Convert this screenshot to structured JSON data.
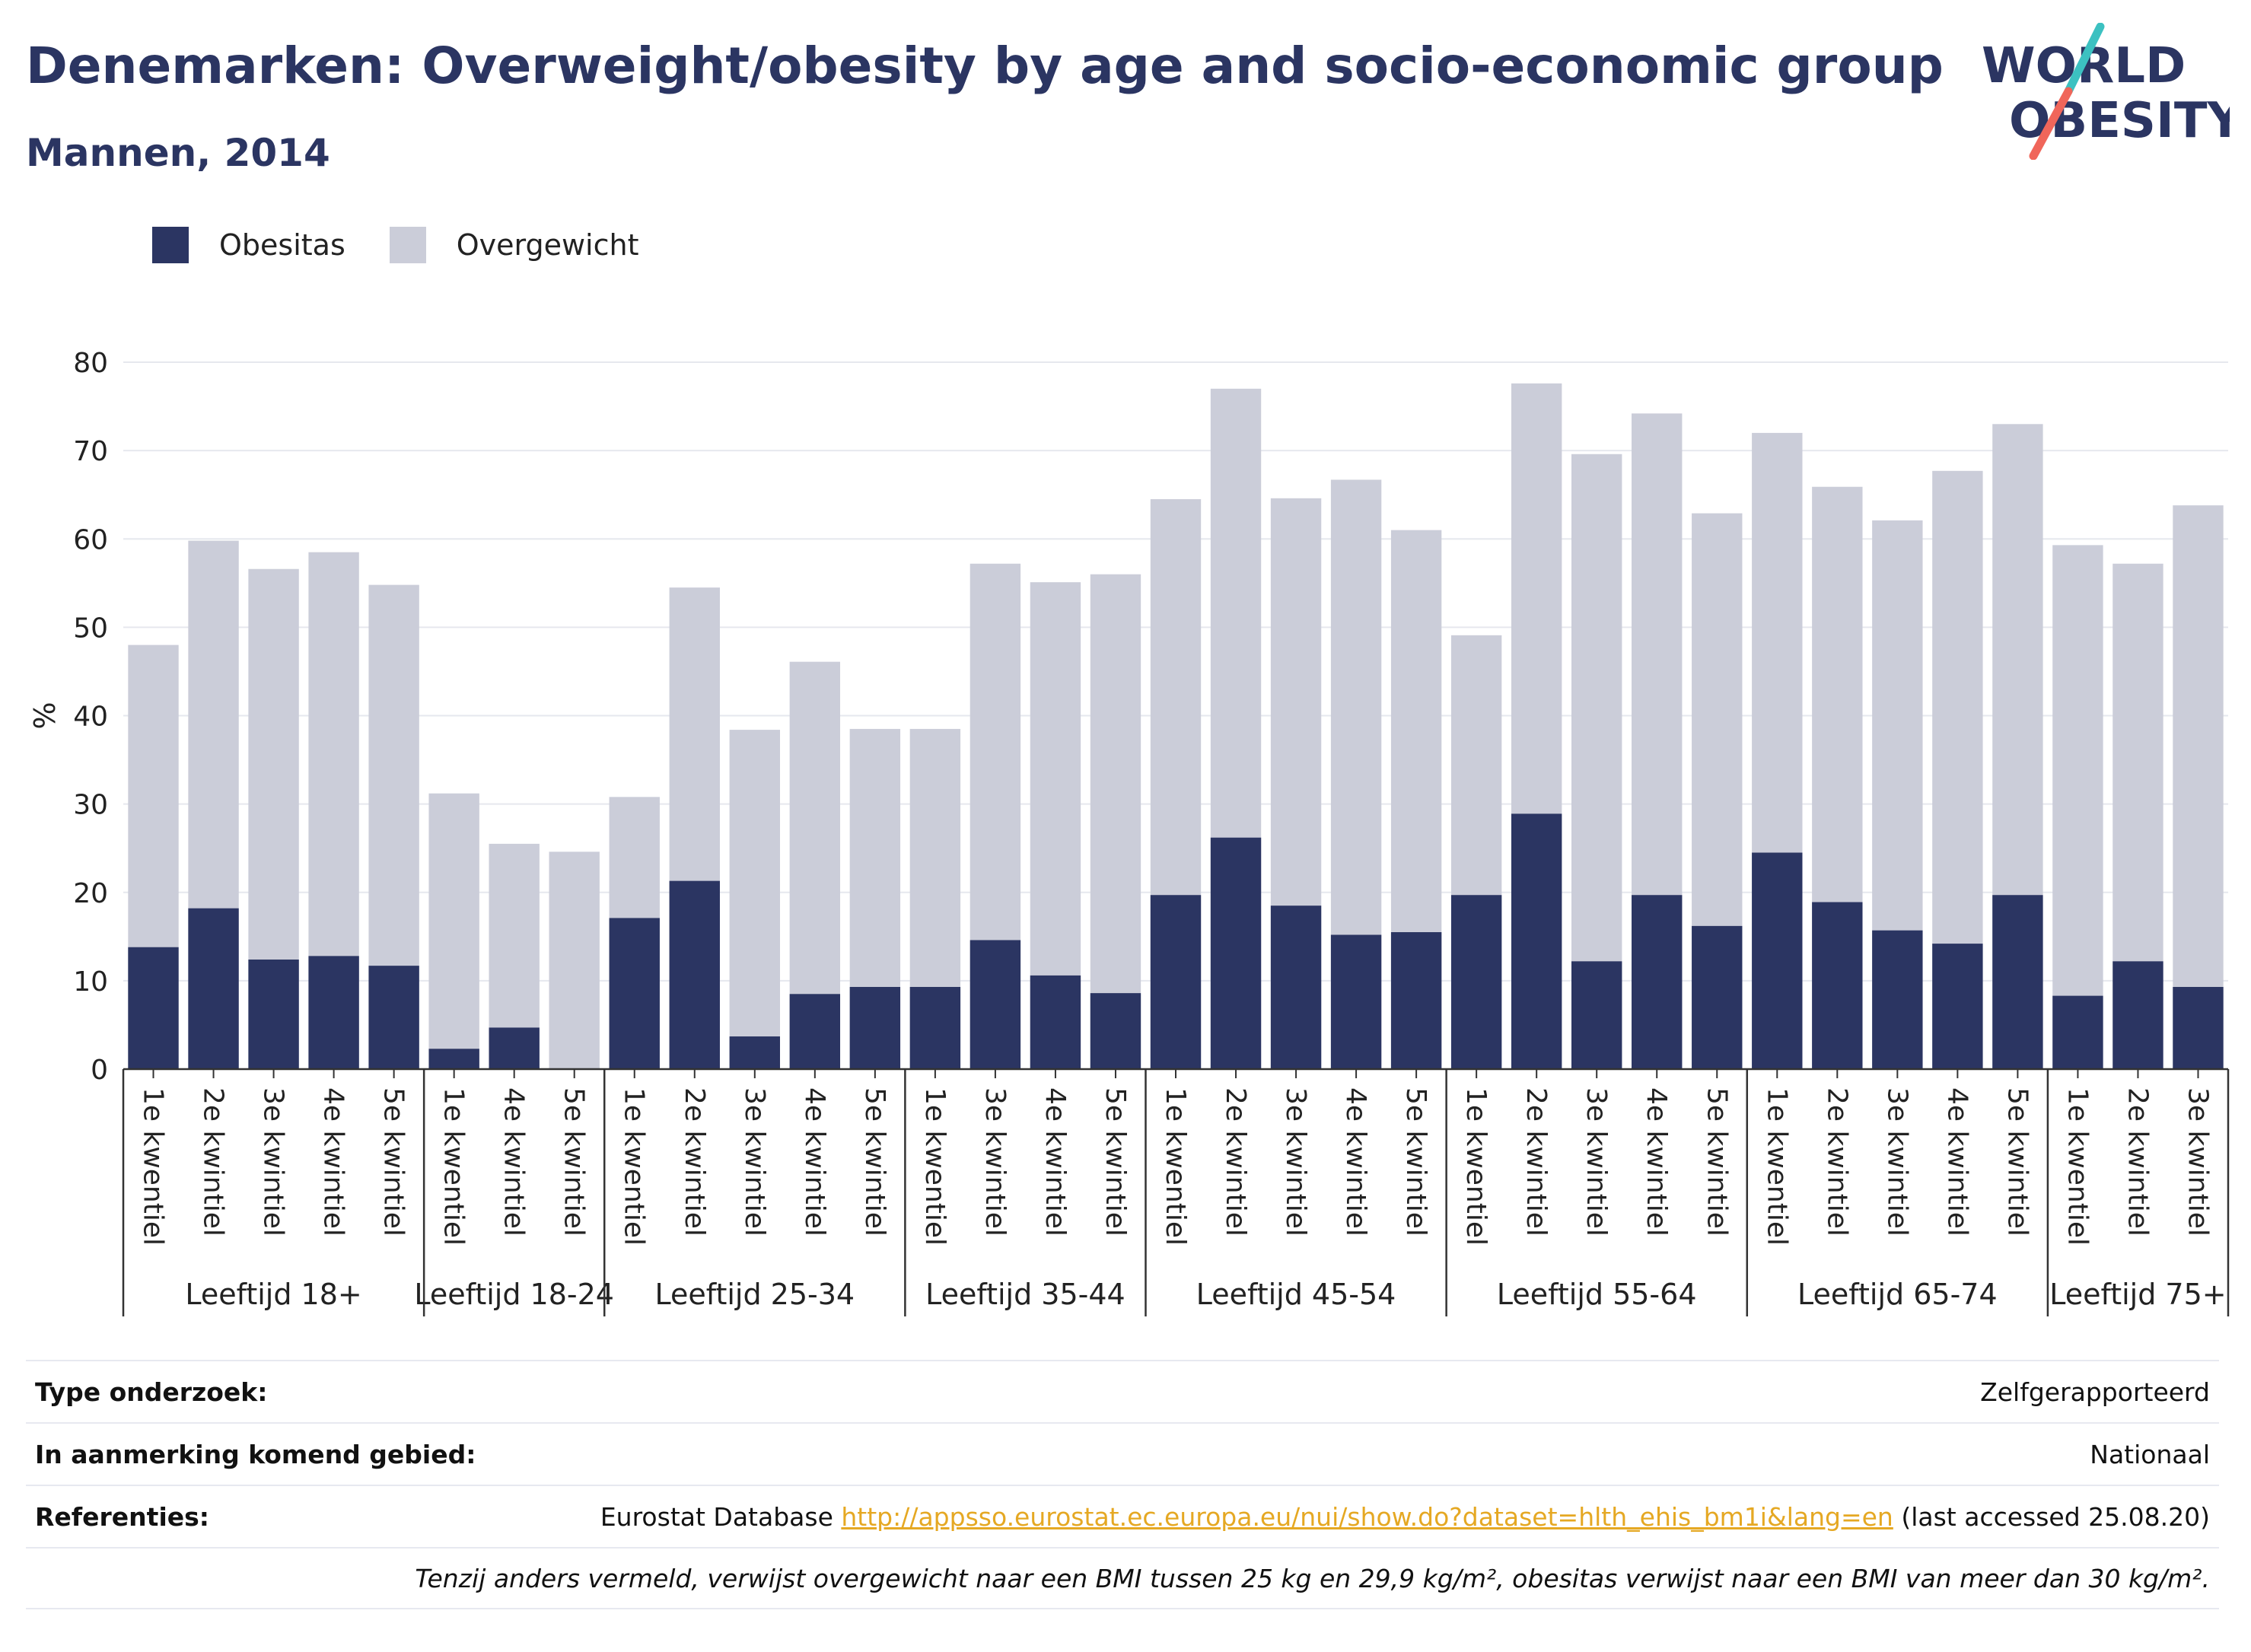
{
  "header": {
    "title": "Denemarken: Overweight/obesity by age and socio-economic group",
    "subtitle": "Mannen, 2014"
  },
  "logo": {
    "line1": "WORLD",
    "line2": "OBESITY"
  },
  "colors": {
    "obesity": "#2b3562",
    "overweight": "#cbcdd9",
    "title": "#2b3562",
    "link": "#e5a823",
    "logo_slash_top": "#3cc1c1",
    "logo_slash_bottom": "#f0665a"
  },
  "legend": [
    {
      "label": "Obesitas",
      "color": "#2b3562"
    },
    {
      "label": "Overgewicht",
      "color": "#cbcdd9"
    }
  ],
  "chart_data": {
    "type": "bar",
    "stacked": true,
    "ylabel": "%",
    "ylim": [
      0,
      80
    ],
    "yticks": [
      0,
      10,
      20,
      30,
      40,
      50,
      60,
      70,
      80
    ],
    "grid": true,
    "groups": [
      {
        "label": "Leeftijd 18+",
        "categories": [
          "1e kwentiel",
          "2e kwintiel",
          "3e kwintiel",
          "4e kwintiel",
          "5e kwintiel"
        ],
        "obesitas": [
          13.8,
          18.2,
          12.4,
          12.8,
          11.7
        ],
        "total": [
          48.0,
          59.8,
          56.6,
          58.5,
          54.8
        ]
      },
      {
        "label": "Leeftijd 18-24",
        "categories": [
          "1e kwentiel",
          "4e kwintiel",
          "5e kwintiel"
        ],
        "obesitas": [
          2.3,
          4.7,
          0.0
        ],
        "total": [
          31.2,
          25.5,
          24.6
        ]
      },
      {
        "label": "Leeftijd 25-34",
        "categories": [
          "1e kwentiel",
          "2e kwintiel",
          "3e kwintiel",
          "4e kwintiel",
          "5e kwintiel"
        ],
        "obesitas": [
          17.1,
          21.3,
          3.7,
          8.5,
          9.3
        ],
        "total": [
          30.8,
          54.5,
          38.4,
          46.1,
          38.5
        ]
      },
      {
        "label": "Leeftijd 35-44",
        "categories": [
          "1e kwentiel",
          "3e kwintiel",
          "4e kwintiel",
          "5e kwintiel"
        ],
        "obesitas": [
          9.3,
          14.6,
          10.6,
          8.6
        ],
        "total": [
          38.5,
          57.2,
          55.1,
          56.0
        ]
      },
      {
        "label": "Leeftijd 45-54",
        "categories": [
          "1e kwentiel",
          "2e kwintiel",
          "3e kwintiel",
          "4e kwintiel",
          "5e kwintiel"
        ],
        "obesitas": [
          19.7,
          26.2,
          18.5,
          15.2,
          15.5
        ],
        "total": [
          64.5,
          77.0,
          64.6,
          66.7,
          61.0
        ]
      },
      {
        "label": "Leeftijd 55-64",
        "categories": [
          "1e kwentiel",
          "2e kwintiel",
          "3e kwintiel",
          "4e kwintiel",
          "5e kwintiel"
        ],
        "obesitas": [
          19.7,
          28.9,
          12.2,
          19.7,
          16.2
        ],
        "total": [
          49.1,
          77.6,
          69.6,
          74.2,
          62.9
        ]
      },
      {
        "label": "Leeftijd 65-74",
        "categories": [
          "1e kwentiel",
          "2e kwintiel",
          "3e kwintiel",
          "4e kwintiel",
          "5e kwintiel"
        ],
        "obesitas": [
          24.5,
          18.9,
          15.7,
          14.2,
          19.7
        ],
        "total": [
          72.0,
          65.9,
          62.1,
          67.7,
          73.0
        ]
      },
      {
        "label": "Leeftijd 75+",
        "categories": [
          "1e kwentiel",
          "2e kwintiel",
          "3e kwintiel"
        ],
        "obesitas": [
          8.3,
          12.2,
          9.3
        ],
        "total": [
          59.3,
          57.2,
          63.8
        ]
      }
    ]
  },
  "info_table": {
    "type_label": "Type onderzoek:",
    "type_value": "Zelfgerapporteerd",
    "area_label": "In aanmerking komend gebied:",
    "area_value": "Nationaal",
    "ref_label": "Referenties:",
    "ref_prefix": "Eurostat Database ",
    "ref_link": "http://appsso.eurostat.ec.europa.eu/nui/show.do?dataset=hlth_ehis_bm1i&lang=en",
    "ref_suffix": " (last accessed 25.08.20)",
    "note": "Tenzij anders vermeld, verwijst overgewicht naar een BMI tussen 25 kg en 29,9 kg/m², obesitas verwijst naar een BMI van meer dan 30 kg/m²."
  }
}
